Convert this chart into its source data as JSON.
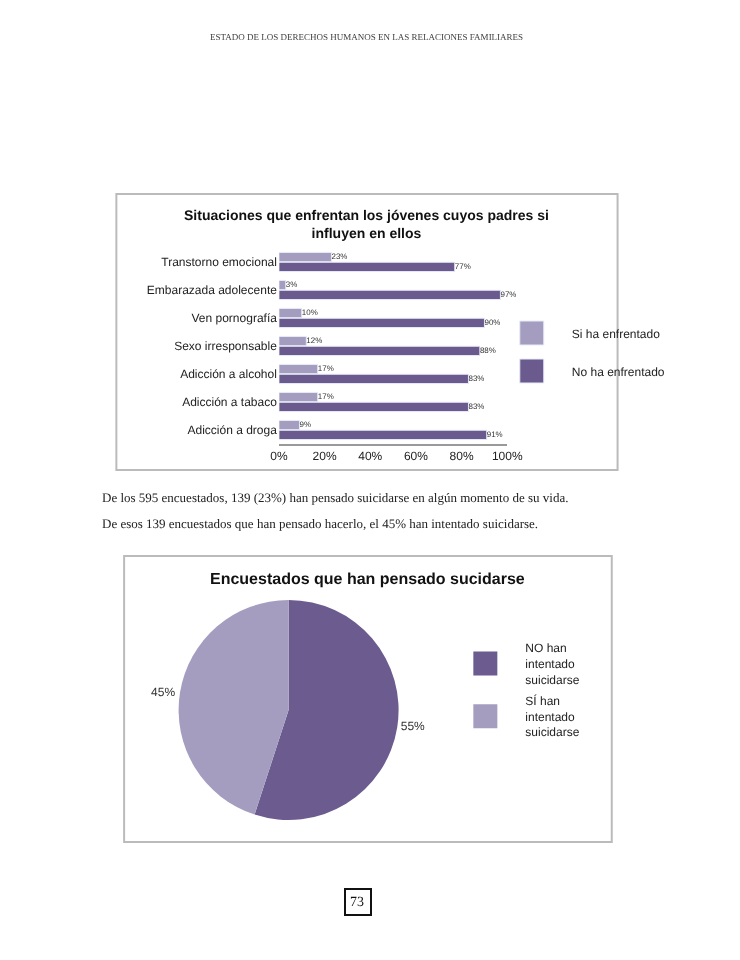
{
  "chart_data": [
    {
      "type": "bar",
      "orientation": "horizontal",
      "title": "Situaciones que enfrentan los jóvenes cuyos padres si influyen en ellos",
      "categories": [
        "Transtorno emocional",
        "Embarazada adolecente",
        "Ven pornografía",
        "Sexo irresponsable",
        "Adicción a alcohol",
        "Adicción a tabaco",
        "Adicción a droga"
      ],
      "series": [
        {
          "name": "Si ha enfrentado",
          "color": "#a49dc0",
          "values": [
            23,
            3,
            10,
            12,
            17,
            17,
            9
          ],
          "value_labels": [
            "23%",
            "3%",
            "10%",
            "12%",
            "17%",
            "17%",
            "9%"
          ]
        },
        {
          "name": "No ha enfrentado",
          "color": "#6a5a8e",
          "values": [
            77,
            97,
            90,
            88,
            83,
            83,
            91
          ],
          "value_labels": [
            "77%",
            "97%",
            "90%",
            "88%",
            "83%",
            "83%",
            "91%"
          ]
        }
      ],
      "xlim": [
        0,
        100
      ],
      "xticks": [
        {
          "value": 0,
          "label": "0%"
        },
        {
          "value": 20,
          "label": "20%"
        },
        {
          "value": 40,
          "label": "40%"
        },
        {
          "value": 60,
          "label": "60%"
        },
        {
          "value": 80,
          "label": "80%"
        },
        {
          "value": 100,
          "label": "100%"
        }
      ],
      "legend": "right",
      "annotations": [
        "ESTADO DE LOS DERECHOS HUMANOS EN LAS RELACIONES FAMILIARES"
      ]
    },
    {
      "type": "pie",
      "title": "Encuestados que han pensado sucidarse",
      "categories": [
        "NO han intentado suicidarse",
        "SÍ han intentado suicidarse"
      ],
      "values": [
        55,
        45
      ],
      "value_labels": [
        "55%",
        "45%"
      ],
      "colors": [
        "#6b5b8f",
        "#a49dbf"
      ],
      "legend": "right",
      "annotations": [
        "De los 595 encuestados, 139 (23%) han pensado suicidarse en algún momento de su vida.",
        "De esos 139 encuestados que han pensado hacerlo, el 45% han intentado suicidarse.",
        "73"
      ]
    }
  ]
}
